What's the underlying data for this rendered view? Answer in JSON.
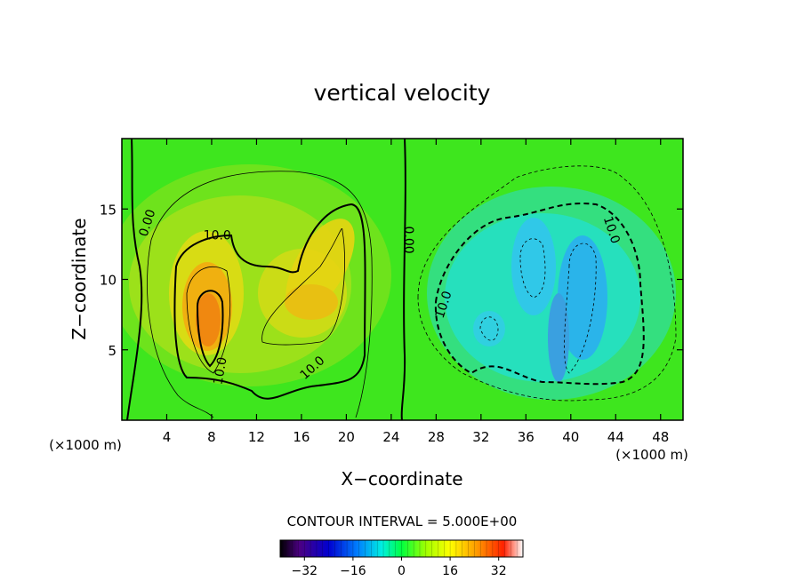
{
  "chart_data": {
    "type": "heatmap",
    "title": "vertical velocity",
    "xlabel": "X−coordinate",
    "ylabel": "Z−coordinate",
    "x_unit_left": "(×1000 m)",
    "x_unit_right": "(×1000 m)",
    "xlim": [
      0,
      50
    ],
    "ylim": [
      0,
      20
    ],
    "x_ticks": [
      4,
      8,
      12,
      16,
      20,
      24,
      28,
      32,
      36,
      40,
      44,
      48
    ],
    "y_ticks": [
      5,
      10,
      15
    ],
    "contour_interval_text": "CONTOUR INTERVAL = 5.000E+00",
    "contour_labels": [
      {
        "text": "0.00",
        "x": 2.3,
        "y": 14.0,
        "rot": -72
      },
      {
        "text": "10.0",
        "x": 8.5,
        "y": 13.1,
        "rot": 0
      },
      {
        "text": "10.0",
        "x": 8.8,
        "y": 3.5,
        "rot": -80
      },
      {
        "text": "10.0",
        "x": 17.0,
        "y": 3.7,
        "rot": -42
      },
      {
        "text": "0.00",
        "x": 25.5,
        "y": 12.8,
        "rot": 90
      },
      {
        "text": "10.0",
        "x": 28.7,
        "y": 8.2,
        "rot": -72
      },
      {
        "text": "10.0",
        "x": 43.6,
        "y": 13.5,
        "rot": 72
      }
    ],
    "colorbar": {
      "min": -40,
      "max": 40,
      "tick_values": [
        -32,
        -16,
        0,
        16,
        32
      ],
      "tick_labels": [
        "−32",
        "−16",
        "0",
        "16",
        "32"
      ]
    }
  }
}
